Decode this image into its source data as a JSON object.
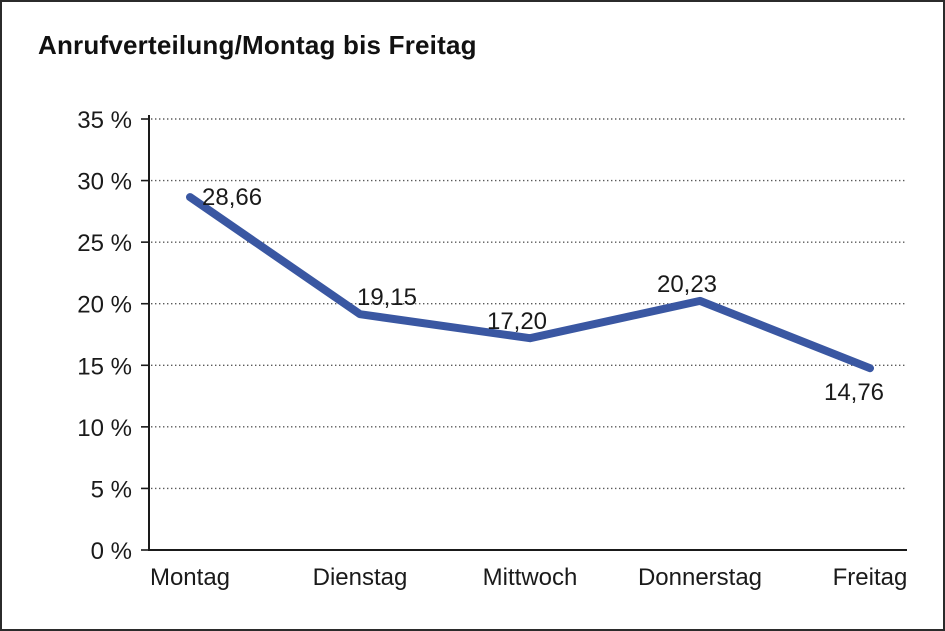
{
  "title": "Anrufverteilung/Montag bis Freitag",
  "chart_data": {
    "type": "line",
    "title": "Anrufverteilung/Montag bis Freitag",
    "categories": [
      "Montag",
      "Dienstag",
      "Mittwoch",
      "Donnerstag",
      "Freitag"
    ],
    "values": [
      28.66,
      19.15,
      17.2,
      20.23,
      14.76
    ],
    "data_labels": [
      "28,66",
      "19,15",
      "17,20",
      "20,23",
      "14,76"
    ],
    "data_label_positions": [
      "right",
      "above",
      "above",
      "above",
      "below"
    ],
    "ytick_labels": [
      "0 %",
      "5 %",
      "10 %",
      "15 %",
      "20 %",
      "25 %",
      "30 %",
      "35 %"
    ],
    "ytick_values": [
      0,
      5,
      10,
      15,
      20,
      25,
      30,
      35
    ],
    "ylim": [
      0,
      35
    ],
    "xlabel": "",
    "ylabel": "",
    "grid": "horizontal-dotted",
    "legend": "none",
    "line_color": "#3A57A2",
    "axis_color": "#1a1a1a",
    "gridline_color": "#5a5a5a",
    "text_color": "#1a1a1a",
    "frame_border_color": "#2b2b2b"
  }
}
